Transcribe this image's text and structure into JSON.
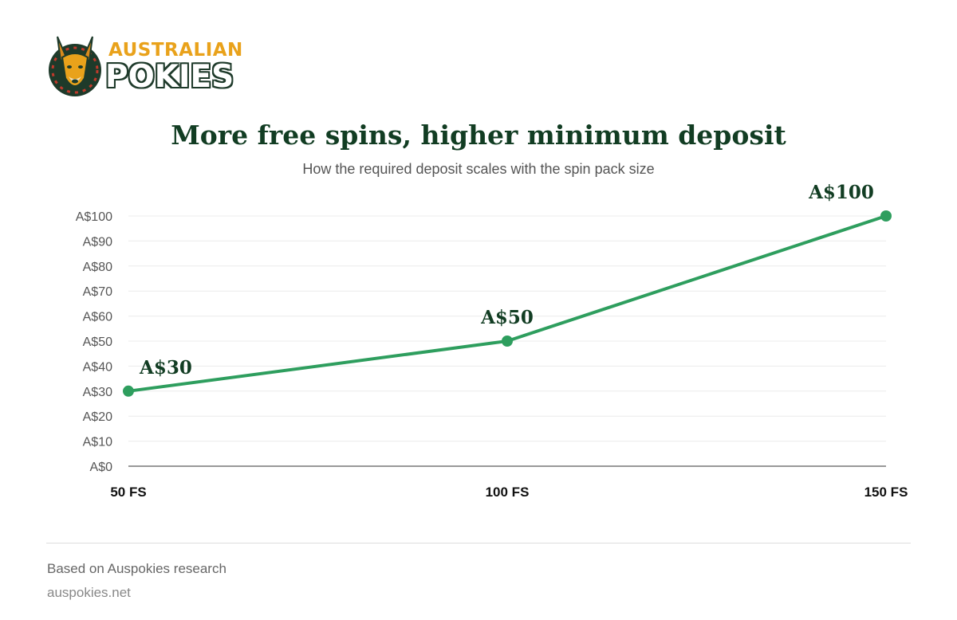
{
  "brand": {
    "line1": "AUSTRALIAN",
    "line2": "POKIES",
    "colors": {
      "gold": "#e9a21b",
      "dark_green": "#1e3a2a",
      "red": "#c0392b"
    }
  },
  "title": "More free spins, higher minimum deposit",
  "subtitle": "How the required deposit scales with the spin pack size",
  "footer": {
    "source": "Based on Auspokies research",
    "site": "auspokies.net"
  },
  "chart_data": {
    "type": "line",
    "categories": [
      "50 FS",
      "100 FS",
      "150 FS"
    ],
    "values": [
      30,
      50,
      100
    ],
    "data_labels": [
      "A$30",
      "A$50",
      "A$100"
    ],
    "y_ticks": [
      "A$0",
      "A$10",
      "A$20",
      "A$30",
      "A$40",
      "A$50",
      "A$60",
      "A$70",
      "A$80",
      "A$90",
      "A$100"
    ],
    "ylim": [
      0,
      100
    ],
    "grid": true,
    "legend": "none",
    "line_color": "#2e9e5e",
    "label_color": "#123d23"
  }
}
